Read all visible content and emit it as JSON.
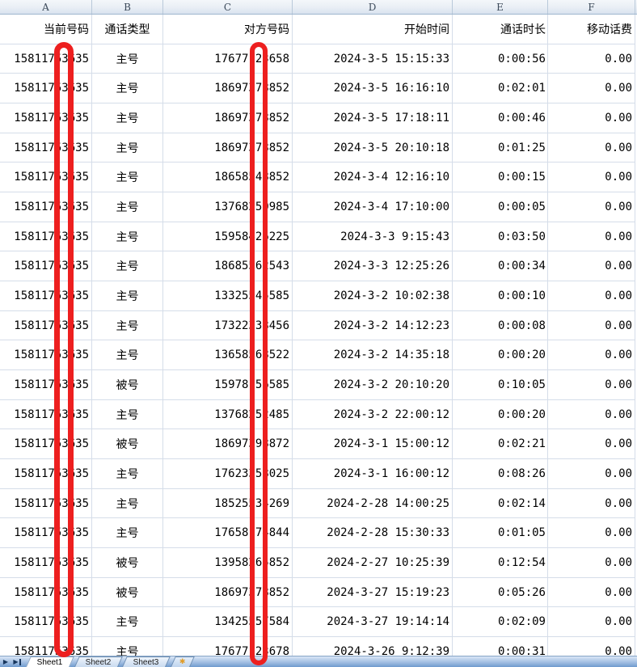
{
  "colors": {
    "redaction": "#ed1f1f",
    "gridline": "#d5dde9",
    "header_border": "#9eb6ce",
    "tabbar_blue": "#6f9ace"
  },
  "columns": [
    "A",
    "B",
    "C",
    "D",
    "E",
    "F"
  ],
  "header_row": {
    "a": "当前号码",
    "b": "通话类型",
    "c": "对方号码",
    "d": "开始时间",
    "e": "通话时长",
    "f": "移动话费"
  },
  "rows": [
    {
      "current": "15811753635",
      "type": "主号",
      "other": "17677123658",
      "start": "2024-3-5 15:15:33",
      "duration": "0:00:56",
      "fee": "0.00"
    },
    {
      "current": "15811753635",
      "type": "主号",
      "other": "18697378852",
      "start": "2024-3-5 16:16:10",
      "duration": "0:02:01",
      "fee": "0.00"
    },
    {
      "current": "15811753635",
      "type": "主号",
      "other": "18697378852",
      "start": "2024-3-5 17:18:11",
      "duration": "0:00:46",
      "fee": "0.00"
    },
    {
      "current": "15811753635",
      "type": "主号",
      "other": "18697378852",
      "start": "2024-3-5 20:10:18",
      "duration": "0:01:25",
      "fee": "0.00"
    },
    {
      "current": "15811753635",
      "type": "主号",
      "other": "18658548852",
      "start": "2024-3-4 12:16:10",
      "duration": "0:00:15",
      "fee": "0.00"
    },
    {
      "current": "15811753635",
      "type": "主号",
      "other": "13768250985",
      "start": "2024-3-4 17:10:00",
      "duration": "0:00:05",
      "fee": "0.00"
    },
    {
      "current": "15811753635",
      "type": "主号",
      "other": "15958426225",
      "start": "2024-3-3 9:15:43",
      "duration": "0:03:50",
      "fee": "0.00"
    },
    {
      "current": "15811753635",
      "type": "主号",
      "other": "18685562543",
      "start": "2024-3-3 12:25:26",
      "duration": "0:00:34",
      "fee": "0.00"
    },
    {
      "current": "15811753635",
      "type": "主号",
      "other": "13325545585",
      "start": "2024-3-2 10:02:38",
      "duration": "0:00:10",
      "fee": "0.00"
    },
    {
      "current": "15811753635",
      "type": "主号",
      "other": "17322338456",
      "start": "2024-3-2 14:12:23",
      "duration": "0:00:08",
      "fee": "0.00"
    },
    {
      "current": "15811753635",
      "type": "主号",
      "other": "13658568522",
      "start": "2024-3-2 14:35:18",
      "duration": "0:00:20",
      "fee": "0.00"
    },
    {
      "current": "15811753635",
      "type": "被号",
      "other": "15978156585",
      "start": "2024-3-2 20:10:20",
      "duration": "0:10:05",
      "fee": "0.00"
    },
    {
      "current": "15811753635",
      "type": "主号",
      "other": "13768252485",
      "start": "2024-3-2 22:00:12",
      "duration": "0:00:20",
      "fee": "0.00"
    },
    {
      "current": "15811753635",
      "type": "被号",
      "other": "18697398872",
      "start": "2024-3-1 15:00:12",
      "duration": "0:02:21",
      "fee": "0.00"
    },
    {
      "current": "15811753635",
      "type": "主号",
      "other": "17623358025",
      "start": "2024-3-1 16:00:12",
      "duration": "0:08:26",
      "fee": "0.00"
    },
    {
      "current": "15811753635",
      "type": "主号",
      "other": "18525534269",
      "start": "2024-2-28 14:00:25",
      "duration": "0:02:14",
      "fee": "0.00"
    },
    {
      "current": "15811753635",
      "type": "主号",
      "other": "17658174844",
      "start": "2024-2-28 15:30:33",
      "duration": "0:01:05",
      "fee": "0.00"
    },
    {
      "current": "15811753635",
      "type": "被号",
      "other": "13958265852",
      "start": "2024-2-27 10:25:39",
      "duration": "0:12:54",
      "fee": "0.00"
    },
    {
      "current": "15811753635",
      "type": "被号",
      "other": "18697378852",
      "start": "2024-3-27 15:19:23",
      "duration": "0:05:26",
      "fee": "0.00"
    },
    {
      "current": "15811753635",
      "type": "主号",
      "other": "13425557584",
      "start": "2024-3-27 19:14:14",
      "duration": "0:02:09",
      "fee": "0.00"
    },
    {
      "current": "15811753635",
      "type": "主号",
      "other": "17677123678",
      "start": "2024-3-26 9:12:39",
      "duration": "0:00:31",
      "fee": "0.00"
    }
  ],
  "sheet_bar": {
    "tabs": [
      "Sheet1",
      "Sheet2",
      "Sheet3"
    ],
    "active_tab": "Sheet1",
    "nav_icons": [
      "scroll-right",
      "scroll-last"
    ],
    "insert_tab_icon": "insert-worksheet"
  },
  "annotations": {
    "redaction_bars": [
      "current-number-column",
      "other-number-column"
    ]
  }
}
